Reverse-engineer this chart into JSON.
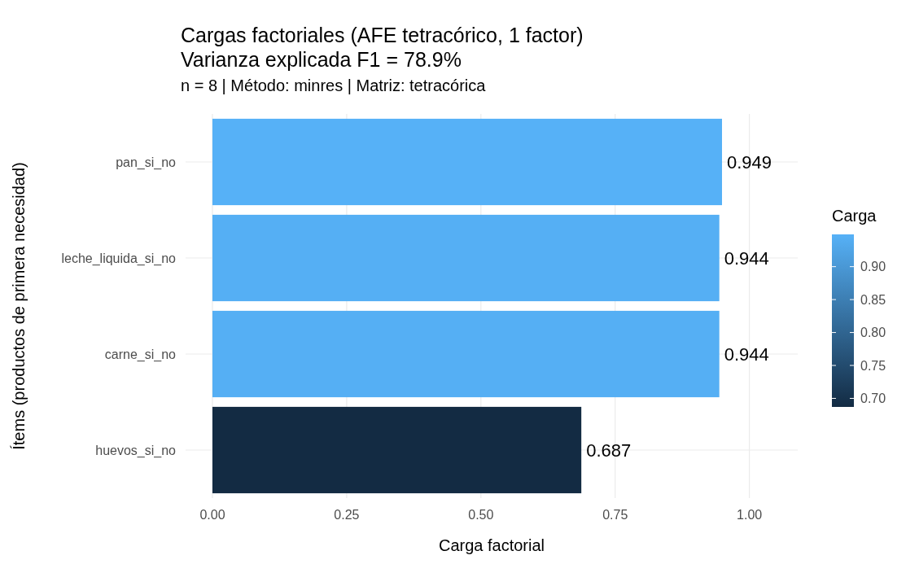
{
  "chart_data": {
    "type": "bar",
    "orientation": "horizontal",
    "title": "Cargas factoriales (AFE tetracórico, 1 factor)\nVarianza explicada F1 = 78.9%",
    "subtitle": "n = 8 | Método: minres | Matriz: tetracórica",
    "xlabel": "Carga factorial",
    "ylabel": "Ítems (productos de primera necesidad)",
    "categories": [
      "pan_si_no",
      "leche_liquida_si_no",
      "carne_si_no",
      "huevos_si_no"
    ],
    "values": [
      0.949,
      0.944,
      0.944,
      0.687
    ],
    "colors": [
      "#56b1f7",
      "#55aff4",
      "#55aff4",
      "#132b43"
    ],
    "data_labels": true,
    "xlim": [
      -0.05,
      1.09
    ],
    "xticks": [
      {
        "value": 0,
        "label": "0.00"
      },
      {
        "value": 0.25,
        "label": "0.25"
      },
      {
        "value": 0.5,
        "label": "0.50"
      },
      {
        "value": 0.75,
        "label": "0.75"
      },
      {
        "value": 1,
        "label": "1.00"
      }
    ],
    "grid": true,
    "clabel": "Carga",
    "clim": [
      0.687,
      0.949
    ],
    "cticks": [
      {
        "value": 0.7,
        "label": "0.70"
      },
      {
        "value": 0.75,
        "label": "0.75"
      },
      {
        "value": 0.8,
        "label": "0.80"
      },
      {
        "value": 0.85,
        "label": "0.85"
      },
      {
        "value": 0.9,
        "label": "0.90"
      }
    ]
  }
}
